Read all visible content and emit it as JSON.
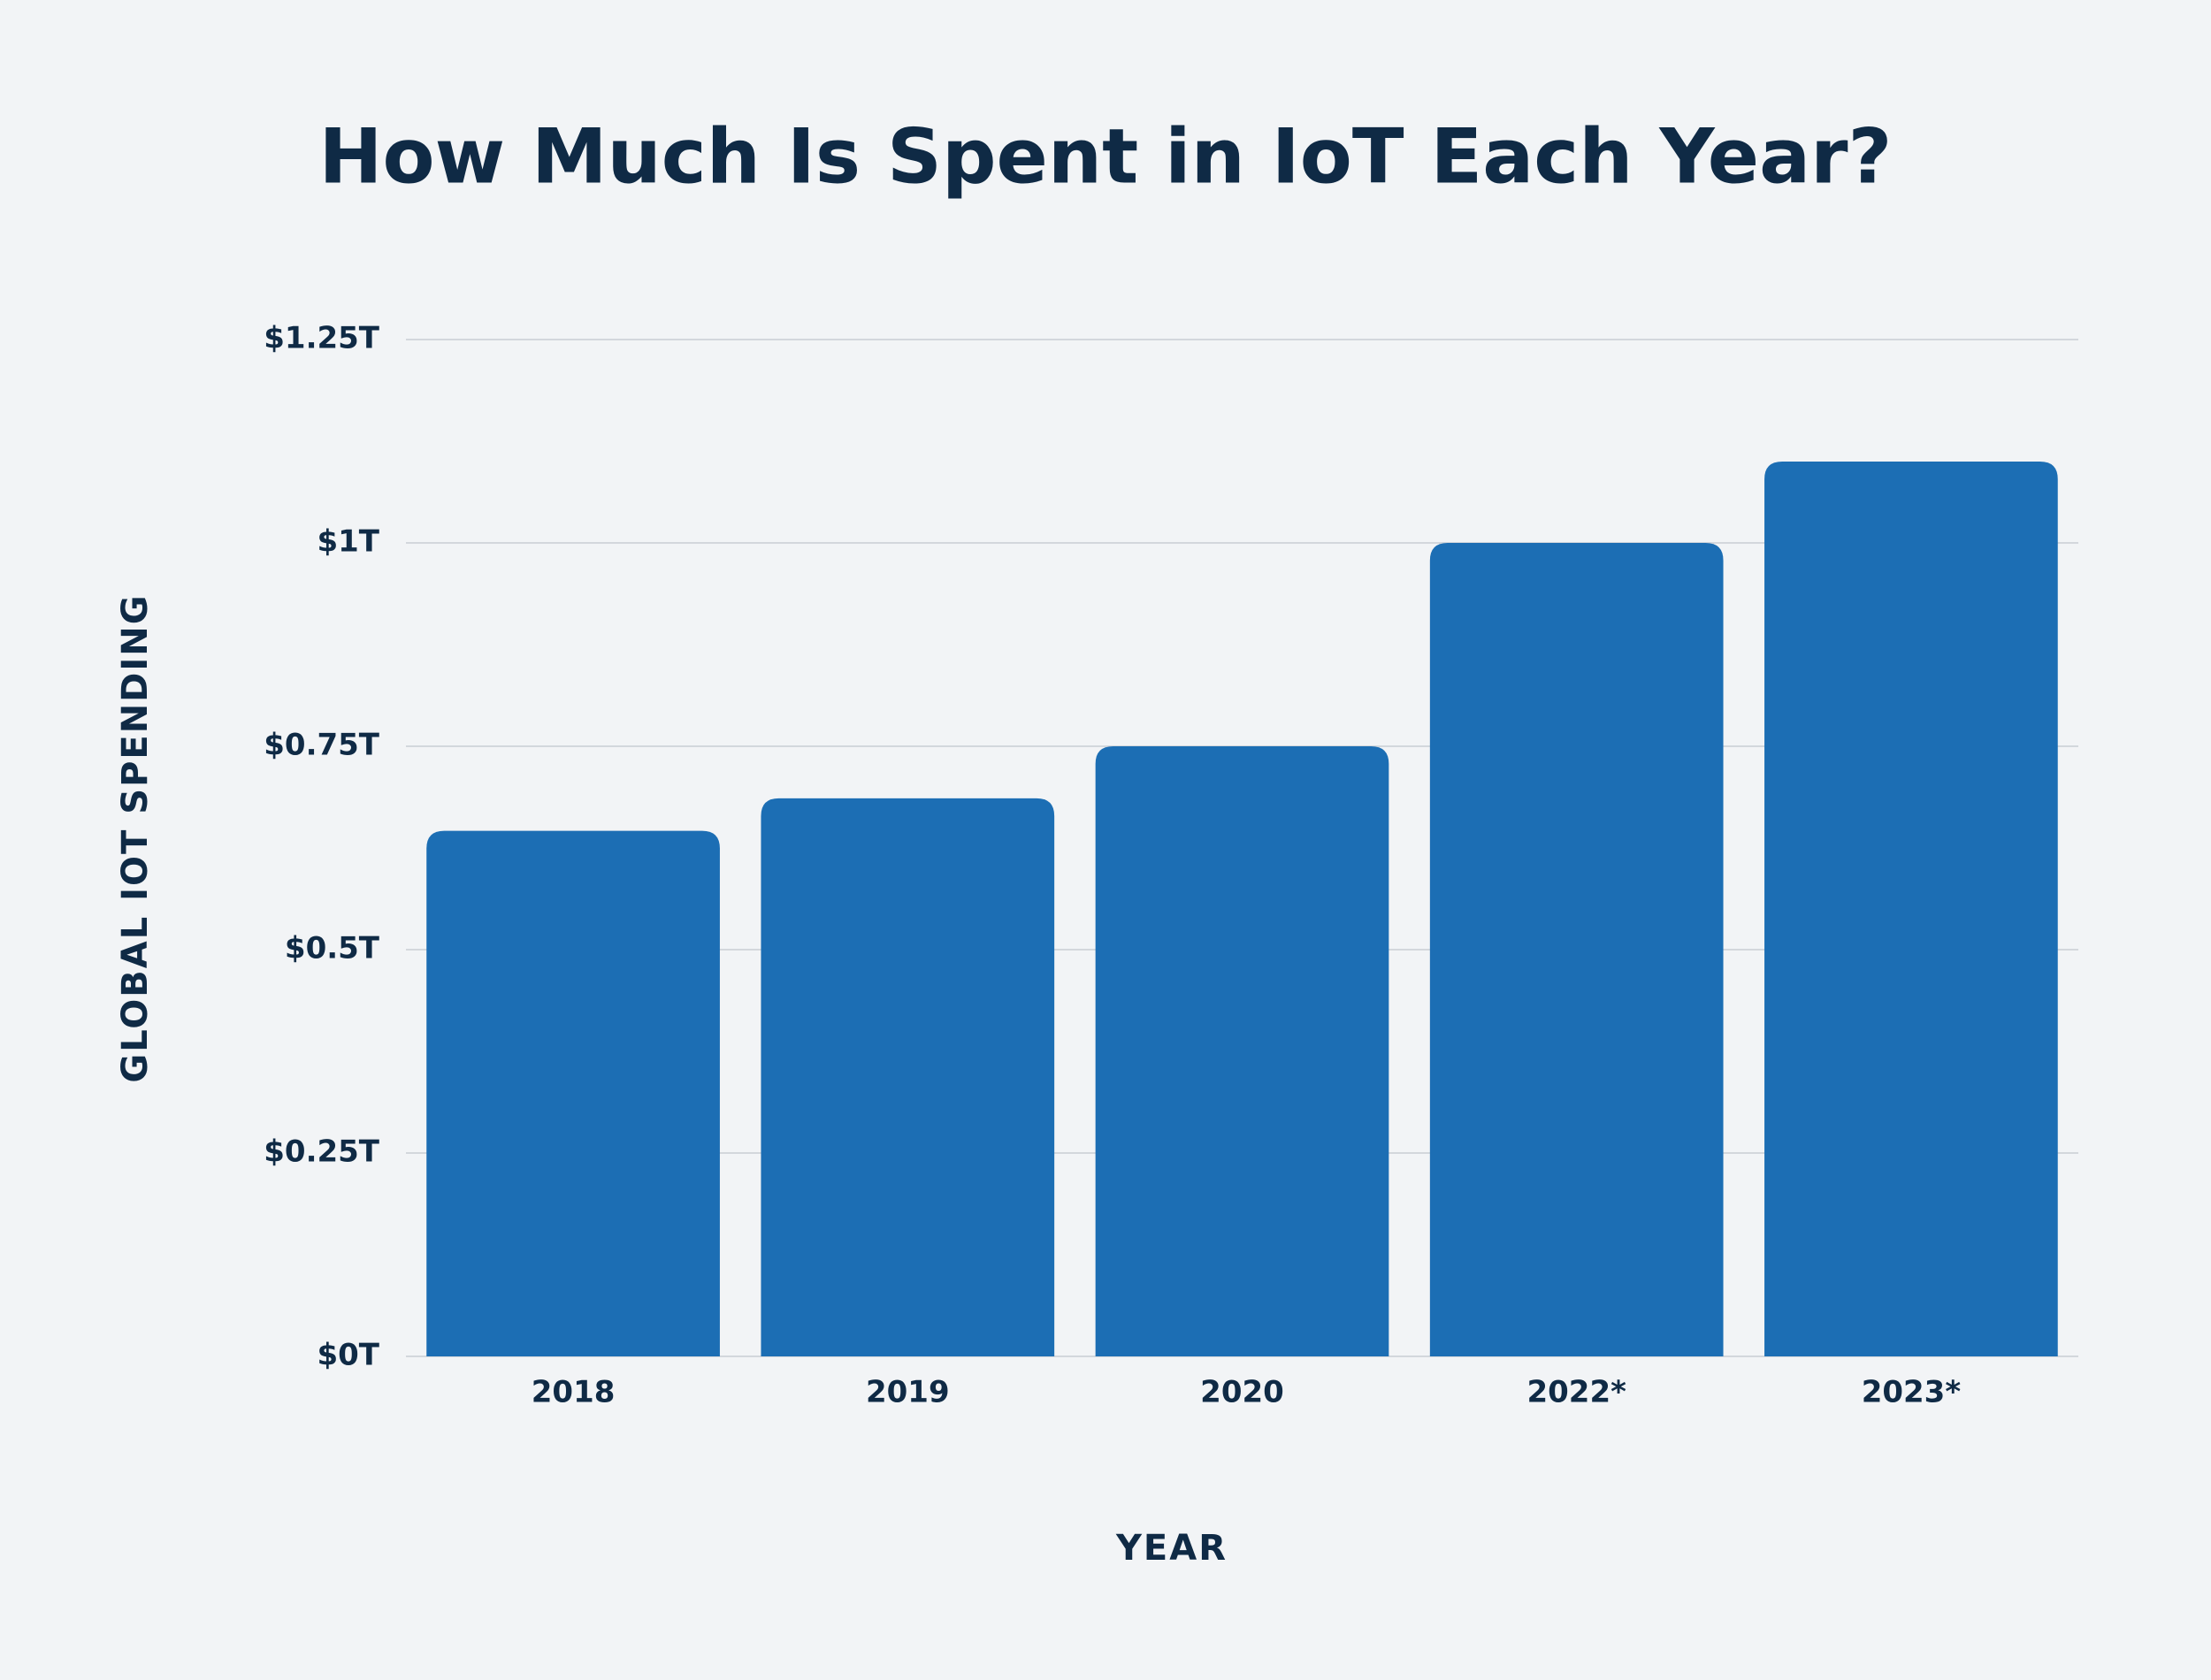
{
  "chart_data": {
    "type": "bar",
    "title": "How Much Is Spent in IoT Each Year?",
    "x_label": "YEAR",
    "y_label": "GLOBAL IOT SPENDING",
    "categories": [
      "2018",
      "2019",
      "2020",
      "2022*",
      "2023*"
    ],
    "values": [
      0.646,
      0.686,
      0.75,
      1.0,
      1.1
    ],
    "color": "#1c6eb4",
    "ylim": [
      0,
      1.25
    ],
    "yticks": [
      {
        "value": 0,
        "label": "$0T"
      },
      {
        "value": 0.25,
        "label": "$0.25T"
      },
      {
        "value": 0.5,
        "label": "$0.5T"
      },
      {
        "value": 0.75,
        "label": "$0.75T"
      },
      {
        "value": 1,
        "label": "$1T"
      },
      {
        "value": 1.25,
        "label": "$1.25T"
      }
    ],
    "grid": true
  }
}
